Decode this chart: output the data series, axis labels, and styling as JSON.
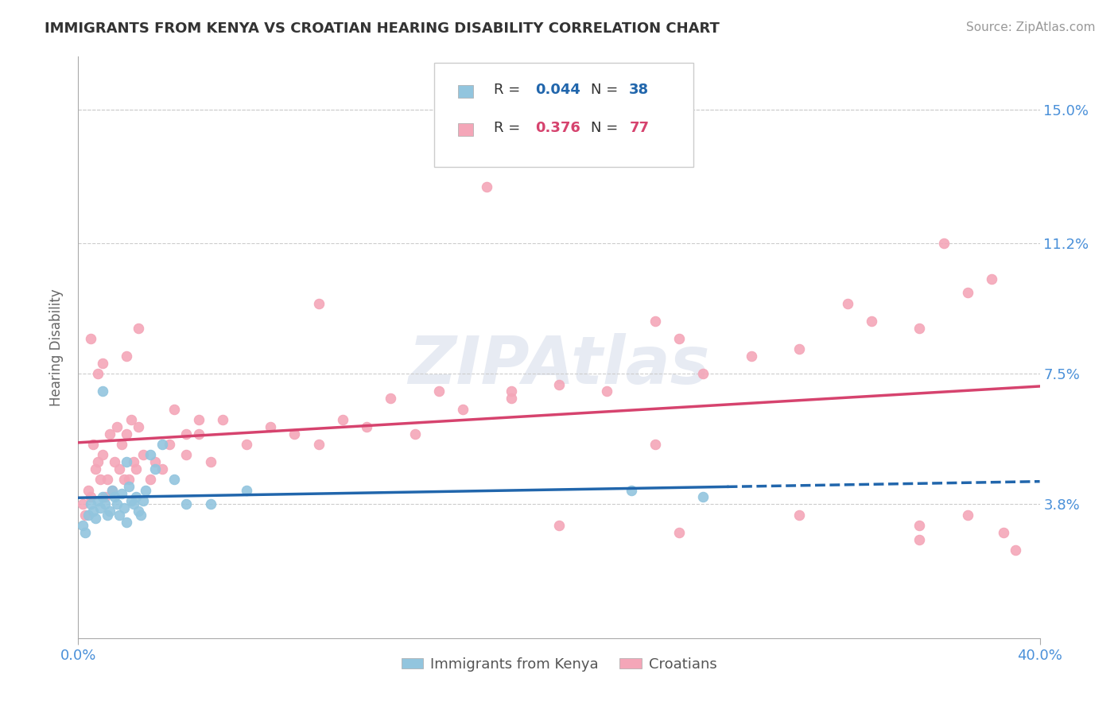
{
  "title": "IMMIGRANTS FROM KENYA VS CROATIAN HEARING DISABILITY CORRELATION CHART",
  "source": "Source: ZipAtlas.com",
  "ylabel": "Hearing Disability",
  "xmin": 0.0,
  "xmax": 40.0,
  "ymin": 0.0,
  "ymax": 16.5,
  "yticks": [
    3.8,
    7.5,
    11.2,
    15.0
  ],
  "xticks": [
    0.0,
    40.0
  ],
  "color_kenya": "#92c5de",
  "color_croatia": "#f4a6b8",
  "color_kenya_line": "#2166ac",
  "color_croatia_line": "#d6436e",
  "color_axis_labels": "#4a90d9",
  "color_grid": "#cccccc",
  "background_color": "#ffffff",
  "kenya_x": [
    0.2,
    0.3,
    0.4,
    0.5,
    0.6,
    0.7,
    0.8,
    0.9,
    1.0,
    1.1,
    1.2,
    1.3,
    1.4,
    1.5,
    1.6,
    1.7,
    1.8,
    1.9,
    2.0,
    2.1,
    2.2,
    2.3,
    2.4,
    2.5,
    2.6,
    2.7,
    2.8,
    3.0,
    3.2,
    3.5,
    4.0,
    4.5,
    5.5,
    7.0,
    23.0,
    26.0,
    1.0,
    2.0
  ],
  "kenya_y": [
    3.2,
    3.0,
    3.5,
    3.8,
    3.6,
    3.4,
    3.9,
    3.7,
    4.0,
    3.8,
    3.5,
    3.6,
    4.2,
    4.0,
    3.8,
    3.5,
    4.1,
    3.7,
    5.0,
    4.3,
    3.9,
    3.8,
    4.0,
    3.6,
    3.5,
    3.9,
    4.2,
    5.2,
    4.8,
    5.5,
    4.5,
    3.8,
    3.8,
    4.2,
    4.2,
    4.0,
    7.0,
    3.3
  ],
  "croatia_x": [
    0.2,
    0.3,
    0.4,
    0.5,
    0.6,
    0.7,
    0.8,
    0.9,
    1.0,
    1.1,
    1.2,
    1.3,
    1.4,
    1.5,
    1.6,
    1.7,
    1.8,
    1.9,
    2.0,
    2.1,
    2.2,
    2.3,
    2.4,
    2.5,
    2.7,
    3.0,
    3.2,
    3.5,
    3.8,
    4.0,
    4.5,
    5.0,
    5.5,
    6.0,
    7.0,
    8.0,
    9.0,
    10.0,
    11.0,
    12.0,
    13.0,
    14.0,
    15.0,
    16.0,
    18.0,
    20.0,
    22.0,
    24.0,
    25.0,
    26.0,
    28.0,
    30.0,
    32.0,
    33.0,
    35.0,
    36.0,
    37.0,
    38.0,
    0.5,
    1.0,
    2.0,
    5.0,
    10.0,
    17.0,
    20.0,
    25.0,
    30.0,
    35.0,
    37.0,
    0.8,
    2.5,
    4.5,
    18.0,
    24.0,
    35.0,
    38.5,
    39.0
  ],
  "croatia_y": [
    3.8,
    3.5,
    4.2,
    4.0,
    5.5,
    4.8,
    5.0,
    4.5,
    5.2,
    4.0,
    4.5,
    5.8,
    4.2,
    5.0,
    6.0,
    4.8,
    5.5,
    4.5,
    5.8,
    4.5,
    6.2,
    5.0,
    4.8,
    6.0,
    5.2,
    4.5,
    5.0,
    4.8,
    5.5,
    6.5,
    5.2,
    5.8,
    5.0,
    6.2,
    5.5,
    6.0,
    5.8,
    5.5,
    6.2,
    6.0,
    6.8,
    5.8,
    7.0,
    6.5,
    6.8,
    7.2,
    7.0,
    9.0,
    8.5,
    7.5,
    8.0,
    8.2,
    9.5,
    9.0,
    8.8,
    11.2,
    9.8,
    10.2,
    8.5,
    7.8,
    8.0,
    6.2,
    9.5,
    12.8,
    3.2,
    3.0,
    3.5,
    3.2,
    3.5,
    7.5,
    8.8,
    5.8,
    7.0,
    5.5,
    2.8,
    3.0,
    2.5
  ]
}
